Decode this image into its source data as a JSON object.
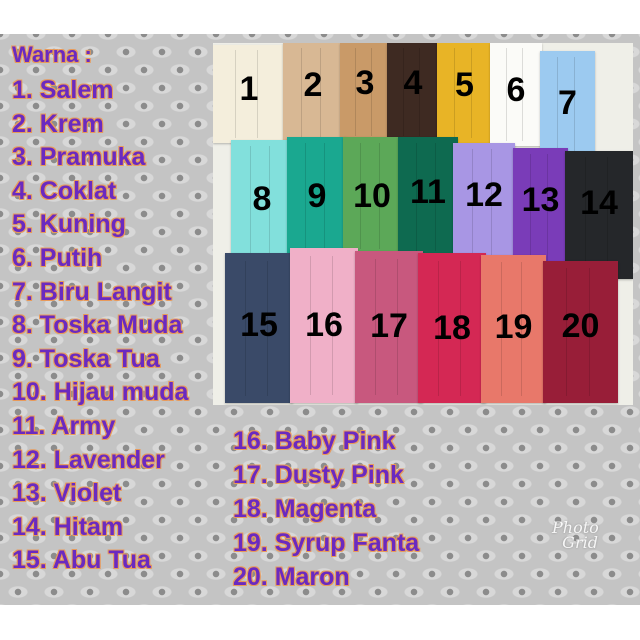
{
  "heading": "Warna :",
  "colors": [
    "1. Salem",
    "2. Krem",
    "3. Pramuka",
    "4. Coklat",
    "5. Kuning",
    "6. Putih",
    "7. Biru Langit",
    "8. Toska Muda",
    "9. Toska Tua",
    "10. Hijau muda",
    "11. Army",
    "12. Lavender",
    "13. Violet",
    "14. Hitam",
    "15. Abu Tua",
    "16. Baby Pink",
    "17. Dusty Pink",
    "18. Magenta",
    "19. Syrup Fanta",
    "20. Maron"
  ],
  "masks": [
    {
      "n": "1",
      "color": "#f4eedc"
    },
    {
      "n": "2",
      "color": "#d8b894"
    },
    {
      "n": "3",
      "color": "#c99a68"
    },
    {
      "n": "4",
      "color": "#3e2a22"
    },
    {
      "n": "5",
      "color": "#e8b426"
    },
    {
      "n": "6",
      "color": "#fbfbf8"
    },
    {
      "n": "7",
      "color": "#9ccaf0"
    },
    {
      "n": "8",
      "color": "#82e0dc"
    },
    {
      "n": "9",
      "color": "#1aa890"
    },
    {
      "n": "10",
      "color": "#5ca858"
    },
    {
      "n": "11",
      "color": "#0e6a50"
    },
    {
      "n": "12",
      "color": "#a896e4"
    },
    {
      "n": "13",
      "color": "#7a3cb8"
    },
    {
      "n": "14",
      "color": "#25272a"
    },
    {
      "n": "15",
      "color": "#3a4a68"
    },
    {
      "n": "16",
      "color": "#f0b0c8"
    },
    {
      "n": "17",
      "color": "#c8587e"
    },
    {
      "n": "18",
      "color": "#d42854"
    },
    {
      "n": "19",
      "color": "#e8786a"
    },
    {
      "n": "20",
      "color": "#981e38"
    }
  ],
  "text_color": "#6a2ac0",
  "watermark": "Photo Grid"
}
